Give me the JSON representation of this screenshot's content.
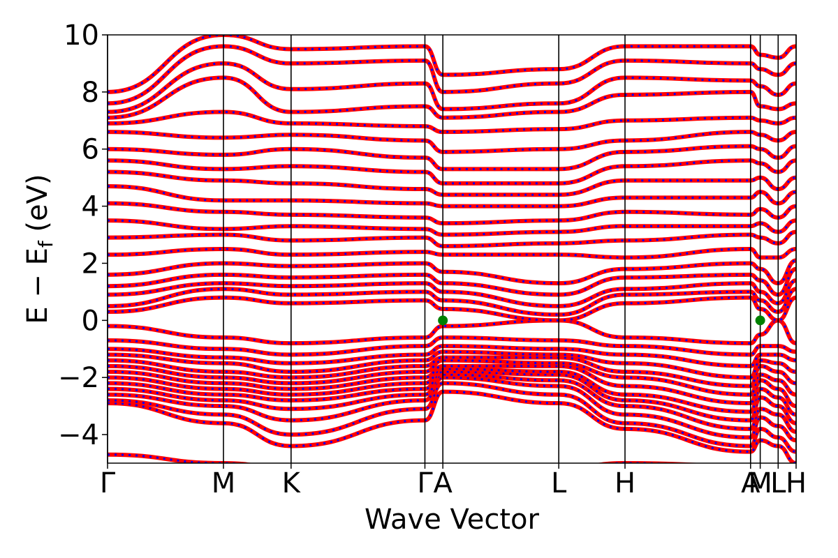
{
  "chart_data": {
    "type": "line",
    "title": "",
    "xlabel": "Wave Vector",
    "ylabel_main": "E − E",
    "ylabel_sub": "f",
    "ylabel_unit": " (eV)",
    "ylim": [
      -5,
      10
    ],
    "yticks": [
      -4,
      -2,
      0,
      2,
      4,
      6,
      8,
      10
    ],
    "ytick_labels": [
      "−4",
      "−2",
      "0",
      "2",
      "4",
      "6",
      "8",
      "10"
    ],
    "xlim": [
      0,
      4.99
    ],
    "high_symmetry_points": [
      {
        "label": "Γ",
        "x": 0.0
      },
      {
        "label": "M",
        "x": 0.84
      },
      {
        "label": "K",
        "x": 1.33
      },
      {
        "label": "Γ",
        "x": 2.3
      },
      {
        "label": "A",
        "x": 2.43
      },
      {
        "label": "L",
        "x": 3.27
      },
      {
        "label": "H",
        "x": 3.75
      },
      {
        "label": "A",
        "x": 4.66
      },
      {
        "label": "M",
        "x": 4.73
      },
      {
        "label": "L",
        "x": 4.86
      },
      {
        "label": "H",
        "x": 4.99
      }
    ],
    "marked_points": [
      {
        "x": 2.43,
        "y": 0.0
      },
      {
        "x": 4.73,
        "y": 0.0
      }
    ],
    "grid": false,
    "legend": "none",
    "colors": {
      "band_solid": "#ff0000",
      "band_dashed": "#0000ff",
      "point": "#008000",
      "vline": "#000000"
    },
    "series": [
      {
        "values": [
          -4.7,
          -5.0,
          -5.2,
          -5.4,
          -5.3,
          -5.2,
          -5.0,
          -5.1,
          -5.2,
          -5.3,
          -5.5
        ]
      },
      {
        "values": [
          -2.9,
          -3.6,
          -4.4,
          -3.5,
          -2.5,
          -2.9,
          -3.8,
          -4.6,
          -4.2,
          -4.4,
          -5.0
        ]
      },
      {
        "values": [
          -2.8,
          -3.3,
          -4.0,
          -3.1,
          -2.2,
          -2.6,
          -3.6,
          -4.4,
          -3.8,
          -4.1,
          -4.6
        ]
      },
      {
        "values": [
          -2.6,
          -3.0,
          -3.5,
          -2.8,
          -2.0,
          -2.3,
          -3.3,
          -4.1,
          -3.4,
          -3.7,
          -4.2
        ]
      },
      {
        "values": [
          -2.4,
          -2.8,
          -3.1,
          -2.6,
          -1.9,
          -2.1,
          -3.0,
          -3.8,
          -3.1,
          -3.3,
          -3.9
        ]
      },
      {
        "values": [
          -2.2,
          -2.6,
          -2.8,
          -2.4,
          -1.8,
          -1.9,
          -2.8,
          -3.5,
          -2.7,
          -3.0,
          -3.6
        ]
      },
      {
        "values": [
          -2.0,
          -2.4,
          -2.6,
          -2.2,
          -1.7,
          -1.8,
          -2.6,
          -3.2,
          -2.4,
          -2.7,
          -3.3
        ]
      },
      {
        "values": [
          -1.8,
          -2.2,
          -2.4,
          -2.0,
          -1.6,
          -1.6,
          -2.3,
          -2.9,
          -2.1,
          -2.4,
          -3.0
        ]
      },
      {
        "values": [
          -1.6,
          -2.0,
          -2.2,
          -1.8,
          -1.4,
          -1.5,
          -2.0,
          -2.6,
          -1.9,
          -2.1,
          -2.6
        ]
      },
      {
        "values": [
          -1.4,
          -1.8,
          -2.0,
          -1.6,
          -1.3,
          -1.3,
          -1.8,
          -2.3,
          -1.6,
          -1.8,
          -2.2
        ]
      },
      {
        "values": [
          -1.2,
          -1.5,
          -1.8,
          -1.4,
          -1.1,
          -1.2,
          -1.5,
          -2.0,
          -1.4,
          -1.5,
          -1.8
        ]
      },
      {
        "values": [
          -1.0,
          -1.3,
          -1.5,
          -1.2,
          -0.9,
          -1.0,
          -1.2,
          -1.6,
          -1.2,
          -1.2,
          -1.4
        ]
      },
      {
        "values": [
          -0.7,
          -1.0,
          -1.2,
          -0.9,
          -0.6,
          -0.7,
          -0.9,
          -1.2,
          -0.9,
          -0.9,
          -1.1
        ]
      },
      {
        "values": [
          -0.2,
          -0.6,
          -0.8,
          -0.6,
          -0.2,
          0.0,
          -0.6,
          -0.8,
          -0.5,
          0.0,
          -0.8
        ]
      },
      {
        "values": [
          0.3,
          0.8,
          0.6,
          0.7,
          0.4,
          0.0,
          0.6,
          0.8,
          0.4,
          0.0,
          0.8
        ]
      },
      {
        "values": [
          0.5,
          1.1,
          0.9,
          1.0,
          0.7,
          0.2,
          0.9,
          1.0,
          0.7,
          0.3,
          1.1
        ]
      },
      {
        "values": [
          0.9,
          1.3,
          1.2,
          1.3,
          1.0,
          0.5,
          1.1,
          1.3,
          1.0,
          0.6,
          1.4
        ]
      },
      {
        "values": [
          1.2,
          1.6,
          1.5,
          1.6,
          1.3,
          0.9,
          1.5,
          1.6,
          1.4,
          0.9,
          1.8
        ]
      },
      {
        "values": [
          1.6,
          2.0,
          1.9,
          2.0,
          1.7,
          1.3,
          1.8,
          2.0,
          1.8,
          1.3,
          2.1
        ]
      },
      {
        "values": [
          2.3,
          2.5,
          2.3,
          2.4,
          2.3,
          2.3,
          2.2,
          2.5,
          2.2,
          2.2,
          2.5
        ]
      },
      {
        "values": [
          2.9,
          3.0,
          2.8,
          2.9,
          2.6,
          2.7,
          2.8,
          3.0,
          2.9,
          2.7,
          3.1
        ]
      },
      {
        "values": [
          3.5,
          3.2,
          3.3,
          3.2,
          3.0,
          3.1,
          3.3,
          3.3,
          3.4,
          3.1,
          3.5
        ]
      },
      {
        "values": [
          4.1,
          3.8,
          3.7,
          3.6,
          3.4,
          3.5,
          3.8,
          3.7,
          3.9,
          3.6,
          4.0
        ]
      },
      {
        "values": [
          4.7,
          4.2,
          4.2,
          4.1,
          4.0,
          4.0,
          4.3,
          4.3,
          4.5,
          4.1,
          4.5
        ]
      },
      {
        "values": [
          5.2,
          4.9,
          4.8,
          4.6,
          4.4,
          4.4,
          4.9,
          4.9,
          5.0,
          4.6,
          5.0
        ]
      },
      {
        "values": [
          5.6,
          5.3,
          5.4,
          5.2,
          4.8,
          4.8,
          5.4,
          5.6,
          5.5,
          5.2,
          5.6
        ]
      },
      {
        "values": [
          6.0,
          5.8,
          6.0,
          5.7,
          5.3,
          5.3,
          5.9,
          6.1,
          6.0,
          5.7,
          6.1
        ]
      },
      {
        "values": [
          6.6,
          6.4,
          6.5,
          6.3,
          5.9,
          6.0,
          6.3,
          6.6,
          6.5,
          6.3,
          6.6
        ]
      },
      {
        "values": [
          6.9,
          7.3,
          6.9,
          6.8,
          6.6,
          6.7,
          7.0,
          7.1,
          7.0,
          6.9,
          7.1
        ]
      },
      {
        "values": [
          7.1,
          8.5,
          7.3,
          7.5,
          7.1,
          7.3,
          7.9,
          8.0,
          7.5,
          7.4,
          7.6
        ]
      },
      {
        "values": [
          7.3,
          9.0,
          8.1,
          8.3,
          7.4,
          7.6,
          8.5,
          8.4,
          8.2,
          7.9,
          8.3
        ]
      },
      {
        "values": [
          7.6,
          9.6,
          9.0,
          9.1,
          8.0,
          8.3,
          9.1,
          9.0,
          8.8,
          8.6,
          9.0
        ]
      },
      {
        "values": [
          8.0,
          10.0,
          9.5,
          9.6,
          8.6,
          8.8,
          9.6,
          9.6,
          9.3,
          9.2,
          9.6
        ]
      }
    ]
  }
}
